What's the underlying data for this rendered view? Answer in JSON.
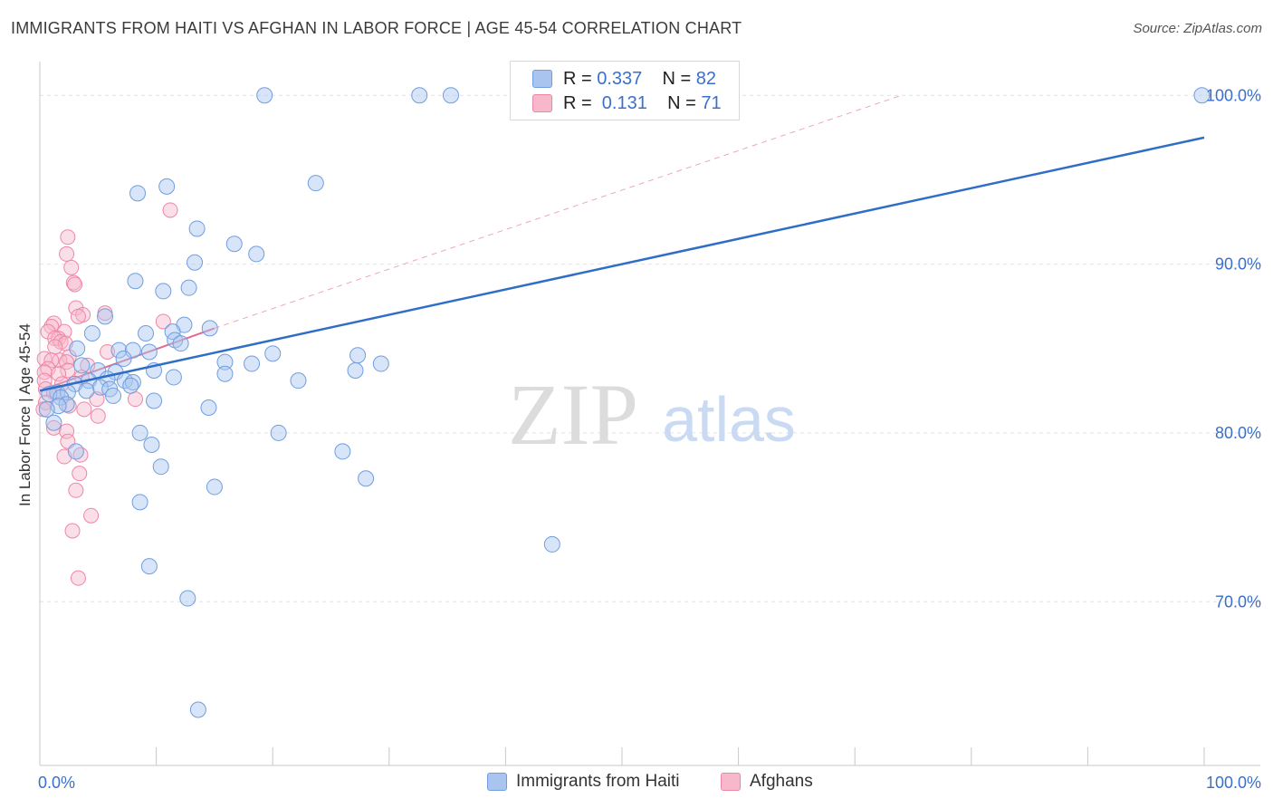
{
  "title": "IMMIGRANTS FROM HAITI VS AFGHAN IN LABOR FORCE | AGE 45-54 CORRELATION CHART",
  "source": "Source: ZipAtlas.com",
  "watermark": {
    "zip": "ZIP",
    "atlas": "atlas"
  },
  "legend": {
    "rows": [
      {
        "r_label": "R =",
        "r_value": "0.337",
        "n_label": "N =",
        "n_value": "82"
      },
      {
        "r_label": "R =",
        "r_value": " 0.131",
        "n_label": "N =",
        "n_value": "71"
      }
    ]
  },
  "bottom_legend": [
    "Immigrants from Haiti",
    "Afghans"
  ],
  "colors": {
    "haiti_fill": "#a9c5ef",
    "haiti_stroke": "#6f9ee0",
    "haiti_line": "#2f6ec7",
    "afghan_fill": "#f7b8cb",
    "afghan_stroke": "#ee86a6",
    "afghan_line": "#e36b90",
    "axis_text": "#3a6fcc",
    "grid": "#e2e2e2"
  },
  "chart_data": {
    "type": "scatter",
    "title": "IMMIGRANTS FROM HAITI VS AFGHAN IN LABOR FORCE | AGE 45-54 CORRELATION CHART",
    "xlabel": "",
    "ylabel": "In Labor Force | Age 45-54",
    "xlim": [
      0,
      100
    ],
    "ylim": [
      60.3,
      102.0
    ],
    "x_tick_labels": [
      {
        "value": 0,
        "label": "0.0%"
      },
      {
        "value": 100,
        "label": "100.0%"
      }
    ],
    "y_tick_labels": [
      {
        "value": 100,
        "label": "100.0%"
      },
      {
        "value": 90,
        "label": "90.0%"
      },
      {
        "value": 80,
        "label": "80.0%"
      },
      {
        "value": 70,
        "label": "70.0%"
      }
    ],
    "series": [
      {
        "name": "Immigrants from Haiti",
        "R": 0.337,
        "N": 82,
        "trend": {
          "x": [
            0,
            100
          ],
          "y": [
            82.5,
            97.5
          ],
          "style": "solid"
        },
        "points": [
          [
            19.3,
            100
          ],
          [
            32.6,
            100
          ],
          [
            35.3,
            100
          ],
          [
            99.8,
            100
          ],
          [
            8.4,
            94.2
          ],
          [
            10.9,
            94.6
          ],
          [
            23.7,
            94.8
          ],
          [
            13.5,
            92.1
          ],
          [
            16.7,
            91.2
          ],
          [
            18.6,
            90.6
          ],
          [
            13.3,
            90.1
          ],
          [
            8.2,
            89.0
          ],
          [
            10.6,
            88.4
          ],
          [
            12.8,
            88.6
          ],
          [
            5.6,
            86.9
          ],
          [
            12.4,
            86.4
          ],
          [
            14.6,
            86.2
          ],
          [
            11.4,
            86.0
          ],
          [
            9.1,
            85.9
          ],
          [
            4.5,
            85.9
          ],
          [
            11.6,
            85.5
          ],
          [
            12.1,
            85.3
          ],
          [
            3.2,
            85.0
          ],
          [
            6.8,
            84.9
          ],
          [
            8.0,
            84.9
          ],
          [
            9.4,
            84.8
          ],
          [
            20.0,
            84.7
          ],
          [
            27.3,
            84.6
          ],
          [
            7.2,
            84.4
          ],
          [
            15.9,
            84.2
          ],
          [
            18.2,
            84.1
          ],
          [
            29.3,
            84.1
          ],
          [
            3.6,
            84.0
          ],
          [
            5.0,
            83.7
          ],
          [
            9.8,
            83.7
          ],
          [
            27.1,
            83.7
          ],
          [
            6.5,
            83.6
          ],
          [
            15.9,
            83.5
          ],
          [
            11.5,
            83.3
          ],
          [
            5.8,
            83.2
          ],
          [
            4.2,
            83.1
          ],
          [
            7.3,
            83.1
          ],
          [
            8.0,
            83.0
          ],
          [
            22.2,
            83.1
          ],
          [
            3.0,
            82.9
          ],
          [
            7.8,
            82.8
          ],
          [
            5.2,
            82.7
          ],
          [
            6.0,
            82.6
          ],
          [
            4.0,
            82.5
          ],
          [
            1.5,
            82.4
          ],
          [
            2.4,
            82.4
          ],
          [
            0.8,
            82.3
          ],
          [
            6.3,
            82.2
          ],
          [
            1.8,
            82.1
          ],
          [
            9.8,
            81.9
          ],
          [
            2.3,
            81.7
          ],
          [
            1.6,
            81.6
          ],
          [
            14.5,
            81.5
          ],
          [
            0.6,
            81.4
          ],
          [
            1.2,
            80.6
          ],
          [
            8.6,
            80.0
          ],
          [
            20.5,
            80.0
          ],
          [
            9.6,
            79.3
          ],
          [
            26.0,
            78.9
          ],
          [
            3.1,
            78.9
          ],
          [
            10.4,
            78.0
          ],
          [
            28.0,
            77.3
          ],
          [
            15.0,
            76.8
          ],
          [
            8.6,
            75.9
          ],
          [
            44.0,
            73.4
          ],
          [
            9.4,
            72.1
          ],
          [
            12.7,
            70.2
          ],
          [
            13.6,
            63.6
          ]
        ]
      },
      {
        "name": "Afghans",
        "R": 0.131,
        "N": 71,
        "trend": {
          "x": [
            0,
            15
          ],
          "y": [
            82.5,
            86.2
          ],
          "style": "solid"
        },
        "trend_extension": {
          "x": [
            15,
            74
          ],
          "y": [
            86.2,
            100.0
          ],
          "style": "dashed"
        },
        "points": [
          [
            11.2,
            93.2
          ],
          [
            2.4,
            91.6
          ],
          [
            2.3,
            90.6
          ],
          [
            2.7,
            89.8
          ],
          [
            2.9,
            88.9
          ],
          [
            3.0,
            88.8
          ],
          [
            3.1,
            87.4
          ],
          [
            5.6,
            87.1
          ],
          [
            3.7,
            87.0
          ],
          [
            3.3,
            86.9
          ],
          [
            10.6,
            86.6
          ],
          [
            1.2,
            86.5
          ],
          [
            1.0,
            86.3
          ],
          [
            0.7,
            86.0
          ],
          [
            2.1,
            86.0
          ],
          [
            1.6,
            85.6
          ],
          [
            1.3,
            85.6
          ],
          [
            1.8,
            85.4
          ],
          [
            2.2,
            85.3
          ],
          [
            1.3,
            85.1
          ],
          [
            5.8,
            84.8
          ],
          [
            2.5,
            84.5
          ],
          [
            0.4,
            84.4
          ],
          [
            1.7,
            84.3
          ],
          [
            1.0,
            84.3
          ],
          [
            2.3,
            84.2
          ],
          [
            4.1,
            84.0
          ],
          [
            0.7,
            83.8
          ],
          [
            2.4,
            83.7
          ],
          [
            0.4,
            83.6
          ],
          [
            1.6,
            83.5
          ],
          [
            3.6,
            83.3
          ],
          [
            0.4,
            83.1
          ],
          [
            1.9,
            82.9
          ],
          [
            0.5,
            82.6
          ],
          [
            1.2,
            82.4
          ],
          [
            4.9,
            82.0
          ],
          [
            8.2,
            82.0
          ],
          [
            0.5,
            81.8
          ],
          [
            2.5,
            81.6
          ],
          [
            0.3,
            81.4
          ],
          [
            3.8,
            81.4
          ],
          [
            5.0,
            81.0
          ],
          [
            1.2,
            80.3
          ],
          [
            2.3,
            80.1
          ],
          [
            2.4,
            79.5
          ],
          [
            3.5,
            78.7
          ],
          [
            2.1,
            78.6
          ],
          [
            3.4,
            77.6
          ],
          [
            3.1,
            76.6
          ],
          [
            4.4,
            75.1
          ],
          [
            2.8,
            74.2
          ],
          [
            3.3,
            71.4
          ]
        ]
      }
    ]
  }
}
